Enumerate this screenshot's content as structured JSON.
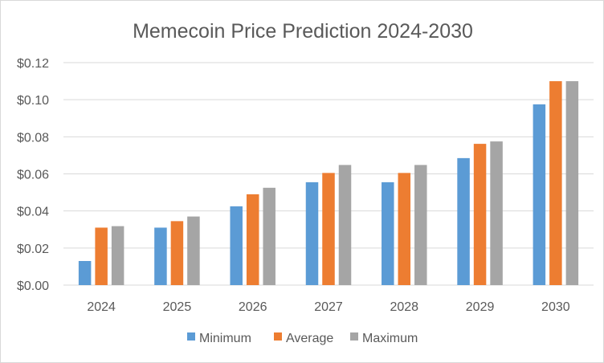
{
  "chart_data": {
    "type": "bar",
    "title": "Memecoin Price Prediction 2024-2030",
    "xlabel": "",
    "ylabel": "",
    "categories": [
      "2024",
      "2025",
      "2026",
      "2027",
      "2028",
      "2029",
      "2030"
    ],
    "series": [
      {
        "name": "Minimum",
        "color": "#5b9bd5",
        "values": [
          0.013,
          0.031,
          0.0425,
          0.0555,
          0.0555,
          0.0685,
          0.0975
        ]
      },
      {
        "name": "Average",
        "color": "#ed7d31",
        "values": [
          0.031,
          0.0345,
          0.049,
          0.0605,
          0.0605,
          0.0762,
          0.11
        ]
      },
      {
        "name": "Maximum",
        "color": "#a5a5a5",
        "values": [
          0.0318,
          0.037,
          0.0525,
          0.0648,
          0.0648,
          0.0775,
          0.11
        ]
      }
    ],
    "ylim": [
      0,
      0.12
    ],
    "yticks": [
      0,
      0.02,
      0.04,
      0.06,
      0.08,
      0.1,
      0.12
    ],
    "ytick_labels": [
      "$0.00",
      "$0.02",
      "$0.04",
      "$0.06",
      "$0.08",
      "$0.10",
      "$0.12"
    ],
    "grid": true,
    "legend_position": "bottom"
  }
}
